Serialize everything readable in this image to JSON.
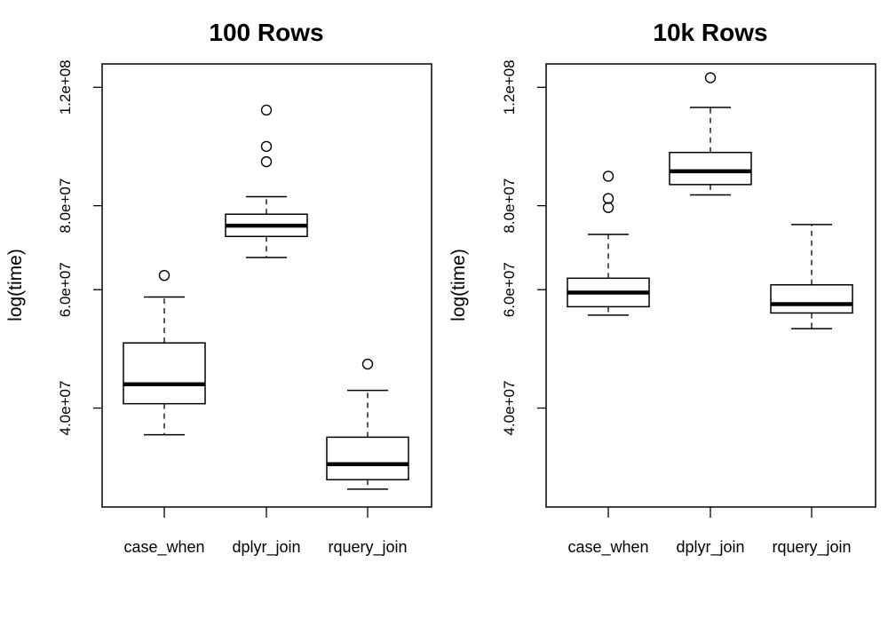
{
  "chart_data": [
    {
      "type": "box",
      "title": "100 Rows",
      "ylabel": "log(time)",
      "xlabel": "",
      "log_y": true,
      "ylim": [
        28500000,
        130000000
      ],
      "yticks": [
        40000000,
        60000000,
        80000000,
        120000000
      ],
      "ytick_labels": [
        "4.0e+07",
        "6.0e+07",
        "8.0e+07",
        "1.2e+08"
      ],
      "categories": [
        "case_when",
        "dplyr_join",
        "rquery_join"
      ],
      "boxes": [
        {
          "whisker_low": 36500000,
          "q1": 40600000,
          "median": 43400000,
          "q3": 50000000,
          "whisker_high": 58500000,
          "outliers": [
            63000000
          ]
        },
        {
          "whisker_low": 67000000,
          "q1": 72000000,
          "median": 74700000,
          "q3": 77700000,
          "whisker_high": 82500000,
          "outliers": [
            93000000,
            98000000,
            111000000
          ]
        },
        {
          "whisker_low": 30300000,
          "q1": 31300000,
          "median": 33000000,
          "q3": 36200000,
          "whisker_high": 42500000,
          "outliers": [
            46500000
          ]
        }
      ]
    },
    {
      "type": "box",
      "title": "10k Rows",
      "ylabel": "log(time)",
      "xlabel": "",
      "log_y": true,
      "ylim": [
        28500000,
        130000000
      ],
      "yticks": [
        40000000,
        60000000,
        80000000,
        120000000
      ],
      "ytick_labels": [
        "4.0e+07",
        "6.0e+07",
        "8.0e+07",
        "1.2e+08"
      ],
      "categories": [
        "case_when",
        "dplyr_join",
        "rquery_join"
      ],
      "boxes": [
        {
          "whisker_low": 55000000,
          "q1": 56600000,
          "median": 59400000,
          "q3": 62400000,
          "whisker_high": 72500000,
          "outliers": [
            79500000,
            82000000,
            88500000
          ]
        },
        {
          "whisker_low": 83000000,
          "q1": 86000000,
          "median": 90000000,
          "q3": 96000000,
          "whisker_high": 112000000,
          "outliers": [
            124000000
          ]
        },
        {
          "whisker_low": 52500000,
          "q1": 55400000,
          "median": 57100000,
          "q3": 61000000,
          "whisker_high": 75000000,
          "outliers": []
        }
      ]
    }
  ]
}
